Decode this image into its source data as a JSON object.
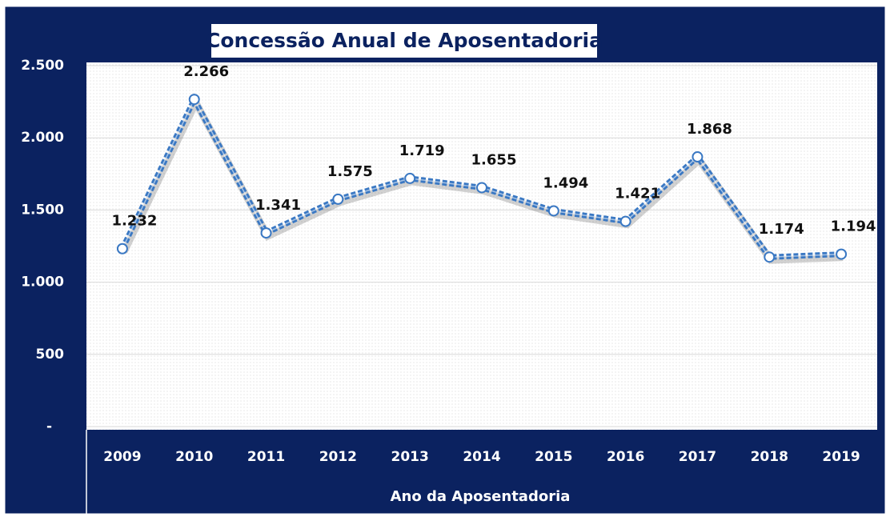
{
  "chart_data": {
    "type": "line",
    "title": "Concessão Anual de Aposentadoria",
    "x_label": "Ano da Aposentadoria",
    "categories": [
      "2009",
      "2010",
      "2011",
      "2012",
      "2013",
      "2014",
      "2015",
      "2016",
      "2017",
      "2018",
      "2019"
    ],
    "series": [
      {
        "name": "Concessão Anual de Aposentadoria",
        "color": "#3a78c3",
        "values": [
          1232,
          2266,
          1341,
          1575,
          1719,
          1655,
          1494,
          1421,
          1868,
          1174,
          1194
        ],
        "value_labels": [
          "1.232",
          "2.266",
          "1.341",
          "1.575",
          "1.719",
          "1.655",
          "1.494",
          "1.421",
          "1.868",
          "1.174",
          "1.194"
        ]
      }
    ],
    "ylim": [
      0,
      2500
    ],
    "yticks": [
      {
        "value": 0,
        "label": "-"
      },
      500,
      {
        "value": 1000,
        "label": "1.000"
      },
      {
        "value": 1500,
        "label": "1.500"
      },
      {
        "value": 2000,
        "label": "2.000"
      },
      {
        "value": 2500,
        "label": "2.500"
      }
    ],
    "grid": true
  }
}
